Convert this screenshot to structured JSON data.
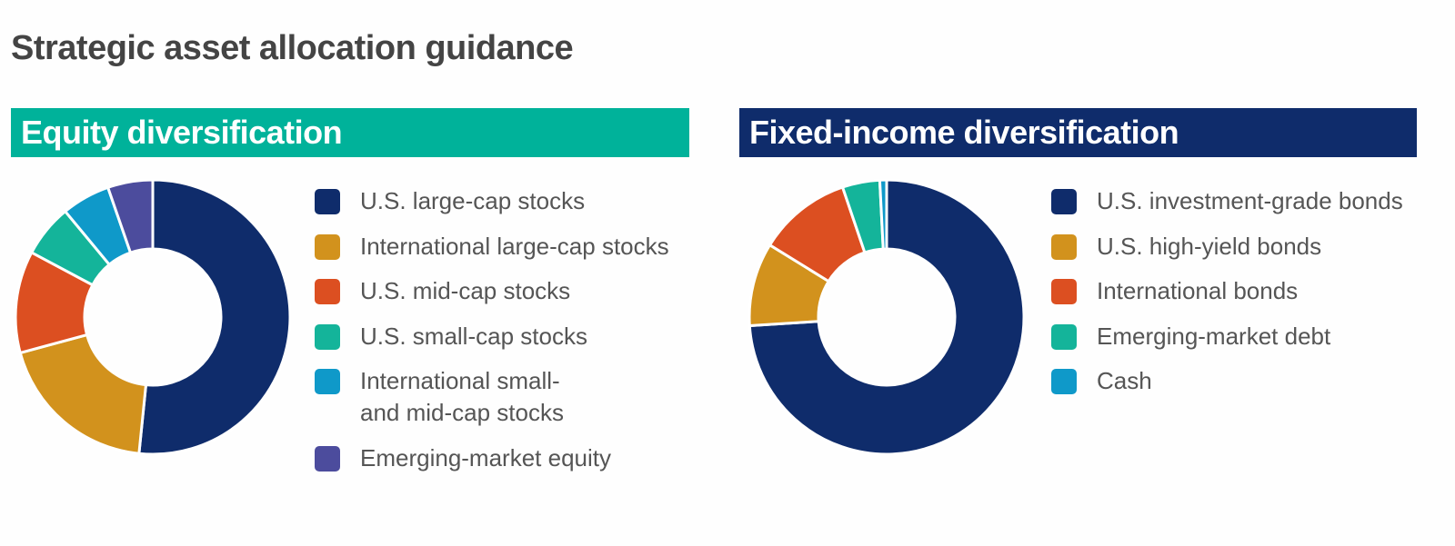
{
  "title": "Strategic asset allocation guidance",
  "panels": [
    {
      "header": "Equity diversification",
      "header_color": "#00b29a",
      "legend": [
        {
          "label": "U.S. large-cap stocks",
          "color": "#0f2c6b"
        },
        {
          "label": "International large-cap stocks",
          "color": "#d2921d"
        },
        {
          "label": "U.S. mid-cap stocks",
          "color": "#dc4f21"
        },
        {
          "label": "U.S. small-cap stocks",
          "color": "#14b49a"
        },
        {
          "label": "International small-\nand mid-cap stocks",
          "color": "#0f99c9"
        },
        {
          "label": "Emerging-market equity",
          "color": "#4c4c9d"
        }
      ]
    },
    {
      "header": "Fixed-income diversification",
      "header_color": "#0f2c6b",
      "legend": [
        {
          "label": "U.S. investment-grade bonds",
          "color": "#0f2c6b"
        },
        {
          "label": "U.S. high-yield bonds",
          "color": "#d2921d"
        },
        {
          "label": "International bonds",
          "color": "#dc4f21"
        },
        {
          "label": "Emerging-market debt",
          "color": "#14b49a"
        },
        {
          "label": "Cash",
          "color": "#0f99c9"
        }
      ]
    }
  ],
  "chart_data": [
    {
      "type": "pie",
      "title": "Equity diversification",
      "donut": true,
      "categories": [
        "U.S. large-cap stocks",
        "International large-cap stocks",
        "U.S. mid-cap stocks",
        "U.S. small-cap stocks",
        "International small- and mid-cap stocks",
        "Emerging-market equity"
      ],
      "values": [
        51.6,
        19.2,
        12.0,
        6.2,
        5.7,
        5.3
      ],
      "colors": [
        "#0f2c6b",
        "#d2921d",
        "#dc4f21",
        "#14b49a",
        "#0f99c9",
        "#4c4c9d"
      ],
      "legend_position": "right"
    },
    {
      "type": "pie",
      "title": "Fixed-income diversification",
      "donut": true,
      "categories": [
        "U.S. investment-grade bonds",
        "U.S. high-yield bonds",
        "International bonds",
        "Emerging-market debt",
        "Cash"
      ],
      "values": [
        74.0,
        9.8,
        11.0,
        4.4,
        0.8
      ],
      "colors": [
        "#0f2c6b",
        "#d2921d",
        "#dc4f21",
        "#14b49a",
        "#0f99c9"
      ],
      "legend_position": "right"
    }
  ]
}
